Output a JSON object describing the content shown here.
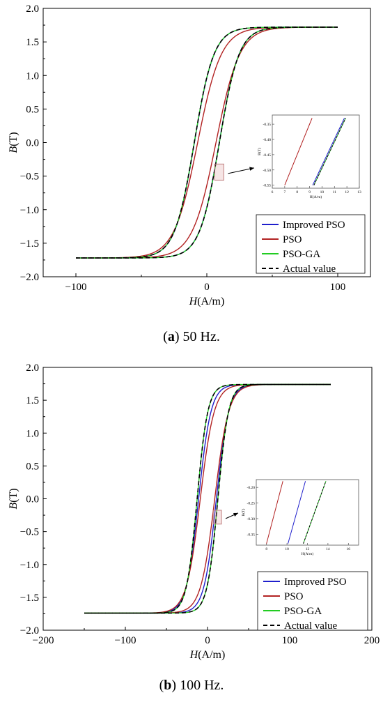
{
  "chart_data": [
    {
      "type": "line",
      "panel_letter": "a",
      "caption_text": "50 Hz.",
      "xlabel_italic": "H",
      "xlabel_unit": "(A/m)",
      "ylabel_italic": "B",
      "ylabel_unit": "(T)",
      "xlim": [
        -125,
        125
      ],
      "ylim": [
        -2.0,
        2.0
      ],
      "xticks": [
        -100,
        0,
        100
      ],
      "xtick_labels": [
        "−100",
        "0",
        "100"
      ],
      "yticks": [
        -2.0,
        -1.5,
        -1.0,
        -0.5,
        0.0,
        0.5,
        1.0,
        1.5,
        2.0
      ],
      "ytick_labels": [
        "−2.0",
        "−1.5",
        "−1.0",
        "−0.5",
        "0.0",
        "0.5",
        "1.0",
        "1.5",
        "2.0"
      ],
      "hmax": 100,
      "bsat": 1.72,
      "legend_position": "bottom-right",
      "series": [
        {
          "name": "Improved PSO",
          "color": "#1f1fcc",
          "style": "solid",
          "h_coercive": 9.5,
          "width": 15
        },
        {
          "name": "PSO",
          "color": "#b22222",
          "style": "solid",
          "h_coercive": 7.0,
          "width": 18
        },
        {
          "name": "PSO-GA",
          "color": "#22cc22",
          "style": "solid",
          "h_coercive": 9.6,
          "width": 15
        },
        {
          "name": "Actual value",
          "color": "#000000",
          "style": "dashed",
          "h_coercive": 9.6,
          "width": 15
        }
      ],
      "inset": {
        "xlim": [
          6,
          13
        ],
        "ylim": [
          -0.56,
          -0.32
        ],
        "xticks": [
          6,
          7,
          8,
          9,
          10,
          11,
          12,
          13
        ],
        "xtick_labels": [
          "6",
          "7",
          "8",
          "9",
          "10",
          "11",
          "12",
          "13"
        ],
        "yticks": [
          -0.35,
          -0.4,
          -0.45,
          -0.5,
          -0.55
        ],
        "ytick_labels": [
          "-0.35",
          "-0.40",
          "-0.45",
          "-0.50",
          "-0.55"
        ],
        "xlabel": "H(A/m)",
        "ylabel": "B(T)",
        "lines": [
          {
            "series": "PSO",
            "x": [
              7.0,
              9.2
            ],
            "y": [
              -0.55,
              -0.33
            ]
          },
          {
            "series": "Improved PSO",
            "x": [
              9.25,
              11.8
            ],
            "y": [
              -0.55,
              -0.33
            ]
          },
          {
            "series": "PSO-GA",
            "x": [
              9.35,
              11.9
            ],
            "y": [
              -0.55,
              -0.33
            ]
          },
          {
            "series": "Actual value",
            "x": [
              9.35,
              11.9
            ],
            "y": [
              -0.55,
              -0.33
            ]
          }
        ]
      },
      "zoom_box": {
        "x": [
          6,
          13
        ],
        "y": [
          -0.56,
          -0.32
        ]
      }
    },
    {
      "type": "line",
      "panel_letter": "b",
      "caption_text": "100 Hz.",
      "xlabel_italic": "H",
      "xlabel_unit": "(A/m)",
      "ylabel_italic": "B",
      "ylabel_unit": "(T)",
      "xlim": [
        -200,
        200
      ],
      "ylim": [
        -2.0,
        2.0
      ],
      "xticks": [
        -200,
        -100,
        0,
        100,
        200
      ],
      "xtick_labels": [
        "−200",
        "−100",
        "0",
        "100",
        "200"
      ],
      "yticks": [
        -2.0,
        -1.5,
        -1.0,
        -0.5,
        0.0,
        0.5,
        1.0,
        1.5,
        2.0
      ],
      "ytick_labels": [
        "−2.0",
        "−1.5",
        "−1.0",
        "−0.5",
        "0.0",
        "0.5",
        "1.0",
        "1.5",
        "2.0"
      ],
      "hmax": 150,
      "bsat": 1.74,
      "legend_position": "bottom-right",
      "series": [
        {
          "name": "Improved PSO",
          "color": "#1f1fcc",
          "style": "solid",
          "h_coercive": 10.8,
          "width": 15
        },
        {
          "name": "PSO",
          "color": "#b22222",
          "style": "solid",
          "h_coercive": 8.8,
          "width": 17
        },
        {
          "name": "PSO-GA",
          "color": "#22cc22",
          "style": "solid",
          "h_coercive": 12.6,
          "width": 13
        },
        {
          "name": "Actual value",
          "color": "#000000",
          "style": "dashed",
          "h_coercive": 12.6,
          "width": 13
        }
      ],
      "inset": {
        "xlim": [
          7,
          17
        ],
        "ylim": [
          -0.385,
          -0.175
        ],
        "xticks": [
          8,
          10,
          12,
          14,
          16
        ],
        "xtick_labels": [
          "8",
          "10",
          "12",
          "14",
          "16"
        ],
        "yticks": [
          -0.2,
          -0.25,
          -0.3,
          -0.35
        ],
        "ytick_labels": [
          "-0.20",
          "-0.25",
          "-0.30",
          "-0.35"
        ],
        "xlabel": "H(A/m)",
        "ylabel": "B(T)",
        "lines": [
          {
            "series": "PSO",
            "x": [
              8.0,
              9.6
            ],
            "y": [
              -0.38,
              -0.18
            ]
          },
          {
            "series": "Improved PSO",
            "x": [
              10.1,
              11.8
            ],
            "y": [
              -0.38,
              -0.18
            ]
          },
          {
            "series": "PSO-GA",
            "x": [
              11.6,
              13.8
            ],
            "y": [
              -0.38,
              -0.18
            ]
          },
          {
            "series": "Actual value",
            "x": [
              11.6,
              13.8
            ],
            "y": [
              -0.38,
              -0.18
            ]
          }
        ]
      },
      "zoom_box": {
        "x": [
          7,
          17
        ],
        "y": [
          -0.385,
          -0.175
        ]
      }
    }
  ]
}
